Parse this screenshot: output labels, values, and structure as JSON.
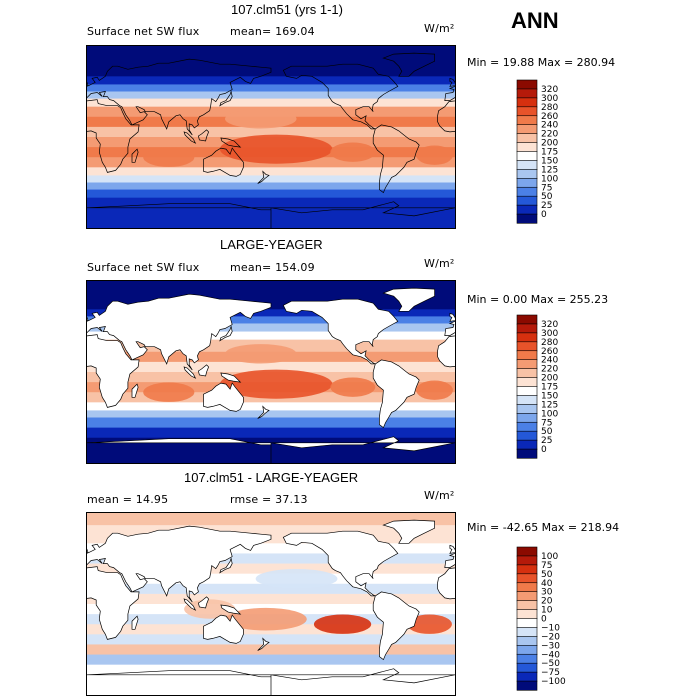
{
  "season_label": "ANN",
  "panels": [
    {
      "title": "107.clm51 (yrs 1-1)",
      "variable": "Surface net SW flux",
      "stat1": "mean=  169.04",
      "stat2": "",
      "units": "W/m²",
      "minmax": "Min =  19.88 Max = 280.94",
      "colorbar_levels": [
        "320",
        "300",
        "280",
        "260",
        "240",
        "220",
        "200",
        "175",
        "150",
        "125",
        "100",
        "75",
        "50",
        "25",
        "0"
      ],
      "colorbar_colors": [
        "#8b0a00",
        "#b51a0a",
        "#d6300f",
        "#e8532a",
        "#f07a4a",
        "#f49b73",
        "#f8c2a6",
        "#fde3d4",
        "#ffffff",
        "#d5e4f7",
        "#a9c6f0",
        "#7ca6ec",
        "#4b80e6",
        "#2458d8",
        "#0a28b8",
        "#000b7a"
      ],
      "land_masked": false
    },
    {
      "title": "LARGE-YEAGER",
      "variable": "Surface net SW flux",
      "stat1": "mean=  154.09",
      "stat2": "",
      "units": "W/m²",
      "minmax": "Min =   0.00 Max = 255.23",
      "colorbar_levels": [
        "320",
        "300",
        "280",
        "260",
        "240",
        "220",
        "200",
        "175",
        "150",
        "125",
        "100",
        "75",
        "50",
        "25",
        "0"
      ],
      "colorbar_colors": [
        "#8b0a00",
        "#b51a0a",
        "#d6300f",
        "#e8532a",
        "#f07a4a",
        "#f49b73",
        "#f8c2a6",
        "#fde3d4",
        "#ffffff",
        "#d5e4f7",
        "#a9c6f0",
        "#7ca6ec",
        "#4b80e6",
        "#2458d8",
        "#0a28b8",
        "#000b7a"
      ],
      "land_masked": true
    },
    {
      "title": "107.clm51 - LARGE-YEAGER",
      "variable": "",
      "stat1": "mean =   14.95",
      "stat2": "rmse =   37.13",
      "units": "W/m²",
      "minmax": "Min = -42.65 Max = 218.94",
      "colorbar_levels": [
        "100",
        "75",
        "50",
        "40",
        "30",
        "20",
        "10",
        "0",
        "−10",
        "−20",
        "−30",
        "−40",
        "−50",
        "−75",
        "−100"
      ],
      "colorbar_colors": [
        "#8b0a00",
        "#b51a0a",
        "#d6300f",
        "#e8532a",
        "#f07a4a",
        "#f49b73",
        "#f8c2a6",
        "#fde3d4",
        "#ffffff",
        "#d5e4f7",
        "#a9c6f0",
        "#7ca6ec",
        "#4b80e6",
        "#2458d8",
        "#0a28b8",
        "#000b7a"
      ],
      "land_masked": true
    }
  ],
  "chart_data": [
    {
      "type": "heatmap",
      "title": "107.clm51 (yrs 1-1)",
      "subtitle": "Surface net SW flux",
      "units": "W/m²",
      "mean": 169.04,
      "min": 19.88,
      "max": 280.94,
      "contour_levels": [
        0,
        25,
        50,
        75,
        100,
        125,
        150,
        175,
        200,
        220,
        240,
        260,
        280,
        300,
        320
      ],
      "grid": "global lat-lon map"
    },
    {
      "type": "heatmap",
      "title": "LARGE-YEAGER",
      "subtitle": "Surface net SW flux",
      "units": "W/m²",
      "mean": 154.09,
      "min": 0.0,
      "max": 255.23,
      "contour_levels": [
        0,
        25,
        50,
        75,
        100,
        125,
        150,
        175,
        200,
        220,
        240,
        260,
        280,
        300,
        320
      ],
      "grid": "global lat-lon map, ocean only"
    },
    {
      "type": "heatmap",
      "title": "107.clm51 - LARGE-YEAGER",
      "units": "W/m²",
      "mean": 14.95,
      "rmse": 37.13,
      "min": -42.65,
      "max": 218.94,
      "contour_levels": [
        -100,
        -75,
        -50,
        -40,
        -30,
        -20,
        -10,
        0,
        10,
        20,
        30,
        40,
        50,
        75,
        100
      ],
      "grid": "global lat-lon map, ocean only"
    }
  ]
}
